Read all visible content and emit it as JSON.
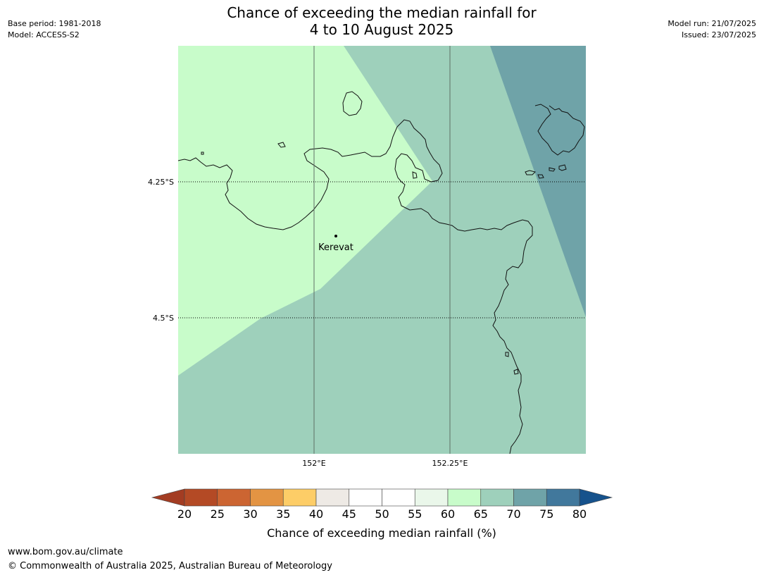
{
  "header": {
    "base_period": "Base period: 1981-2018",
    "model": "Model: ACCESS-S2",
    "model_run": "Model run: 21/07/2025",
    "issued": "Issued: 23/07/2025",
    "title_line1": "Chance of exceeding the median rainfall for",
    "title_line2": "4 to 10 August 2025"
  },
  "map": {
    "lat_labels": [
      "4.25°S",
      "4.5°S"
    ],
    "lon_labels": [
      "152°E",
      "152.25°E"
    ],
    "place": "Kerevat",
    "region_colors": {
      "60_65": "#c8fcca",
      "65_70": "#9ed0bb",
      "70_75": "#6fa3a8"
    }
  },
  "colorbar": {
    "ticks": [
      "20",
      "25",
      "30",
      "35",
      "40",
      "45",
      "50",
      "55",
      "60",
      "65",
      "70",
      "75",
      "80"
    ],
    "colors": [
      "#a33c22",
      "#b44a25",
      "#cc6532",
      "#e39443",
      "#fdcd67",
      "#eeeae5",
      "#ffffff",
      "#ffffff",
      "#eaf7ea",
      "#c8fcca",
      "#9ed0bb",
      "#6fa3a8",
      "#41789c"
    ],
    "under_color": "#a33c22",
    "over_color": "#16528c",
    "label": "Chance of exceeding median rainfall (%)"
  },
  "footer": {
    "url": "www.bom.gov.au/climate",
    "copyright": "© Commonwealth of Australia 2025, Australian Bureau of Meteorology"
  }
}
